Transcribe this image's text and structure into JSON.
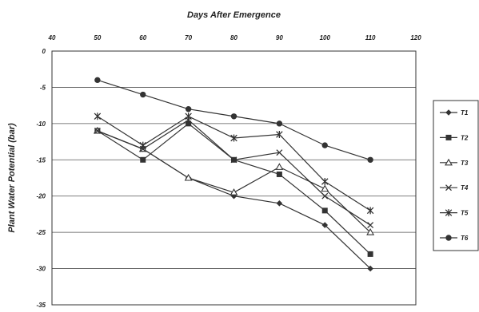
{
  "chart_data": {
    "type": "line",
    "title": "Days After Emergence",
    "xlabel": "Days After Emergence",
    "ylabel": "Plant Water Potential  (bar)",
    "xlim": [
      40,
      120
    ],
    "ylim": [
      -35,
      0
    ],
    "xticks": [
      40,
      50,
      60,
      70,
      80,
      90,
      100,
      110,
      120
    ],
    "yticks": [
      0,
      -5,
      -10,
      -15,
      -20,
      -25,
      -30,
      -35
    ],
    "x_axis_position": "top",
    "grid": true,
    "legend_position": "right",
    "x": [
      50,
      60,
      70,
      80,
      90,
      100,
      110
    ],
    "series": [
      {
        "name": "T1",
        "marker": "diamond",
        "values": [
          -11,
          -13.5,
          -17.5,
          -20,
          -21,
          -24,
          -30
        ]
      },
      {
        "name": "T2",
        "marker": "square",
        "values": [
          -11,
          -15,
          -10,
          -15,
          -17,
          -22,
          -28
        ]
      },
      {
        "name": "T3",
        "marker": "triangle",
        "values": [
          -11,
          -13.5,
          -17.5,
          -19.5,
          -16,
          -19,
          -25
        ]
      },
      {
        "name": "T4",
        "marker": "x",
        "values": [
          -11,
          -13.5,
          -9.5,
          -15,
          -14,
          -20,
          -24
        ]
      },
      {
        "name": "T5",
        "marker": "asterisk",
        "values": [
          -9,
          -13,
          -9,
          -12,
          -11.5,
          -18,
          -22
        ]
      },
      {
        "name": "T6",
        "marker": "circle",
        "values": [
          -4,
          -6,
          -8,
          -9,
          -10,
          -13,
          -15
        ]
      }
    ]
  }
}
